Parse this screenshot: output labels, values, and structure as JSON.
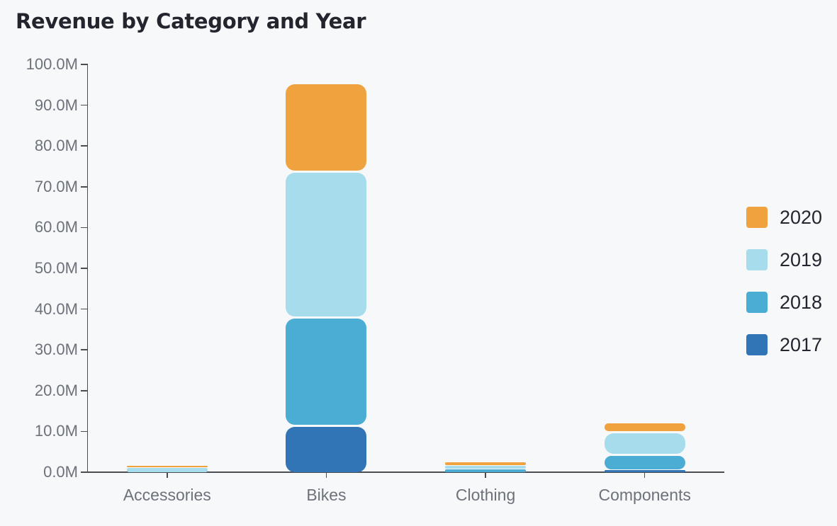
{
  "title": "Revenue by Category and Year",
  "colors": {
    "background": "#f7f8fa",
    "title_text": "#22252d",
    "axis": "#494d52",
    "tick_label": "#6c717a",
    "legend_text": "#23262e"
  },
  "chart_data": {
    "type": "bar",
    "stacked": true,
    "title": "Revenue by Category and Year",
    "categories": [
      "Accessories",
      "Bikes",
      "Clothing",
      "Components"
    ],
    "series": [
      {
        "name": "2017",
        "color": "#3175b6",
        "values": [
          0.02,
          11.4,
          0.05,
          0.6
        ]
      },
      {
        "name": "2018",
        "color": "#4badd3",
        "values": [
          0.05,
          26.6,
          0.7,
          3.7
        ]
      },
      {
        "name": "2019",
        "color": "#a6dcec",
        "values": [
          1.0,
          35.7,
          0.9,
          5.5
        ]
      },
      {
        "name": "2020",
        "color": "#f0a23e",
        "values": [
          0.5,
          21.4,
          0.75,
          2.1
        ]
      }
    ],
    "y_ticks": [
      "100.0M",
      "90.0M",
      "80.0M",
      "70.0M",
      "60.0M",
      "50.0M",
      "40.0M",
      "30.0M",
      "20.0M",
      "10.0M",
      "0.0M"
    ],
    "ylim": [
      0,
      100
    ],
    "unit": "M",
    "xlabel": "",
    "ylabel": "",
    "grid": false,
    "legend": {
      "position": "right",
      "items": [
        "2020",
        "2019",
        "2018",
        "2017"
      ]
    }
  }
}
